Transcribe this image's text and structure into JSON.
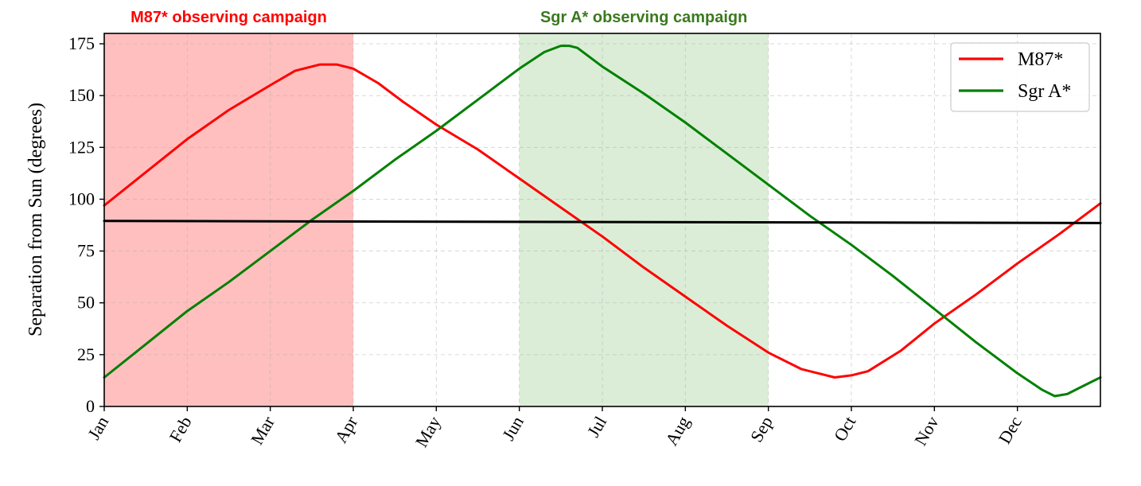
{
  "chart_data": {
    "type": "line",
    "title": "",
    "xlabel": "",
    "ylabel": "Separation from Sun (degrees)",
    "x_unit": "month",
    "xlim": [
      0,
      12
    ],
    "ylim": [
      0,
      180
    ],
    "yticks": [
      0,
      25,
      50,
      75,
      100,
      125,
      150,
      175
    ],
    "xticks": [
      {
        "label": "Jan",
        "x": 0
      },
      {
        "label": "Feb",
        "x": 1
      },
      {
        "label": "Mar",
        "x": 2
      },
      {
        "label": "Apr",
        "x": 3
      },
      {
        "label": "May",
        "x": 4
      },
      {
        "label": "Jun",
        "x": 5
      },
      {
        "label": "Jul",
        "x": 6
      },
      {
        "label": "Aug",
        "x": 7
      },
      {
        "label": "Sep",
        "x": 8
      },
      {
        "label": "Oct",
        "x": 9
      },
      {
        "label": "Nov",
        "x": 10
      },
      {
        "label": "Dec",
        "x": 11
      }
    ],
    "grid": true,
    "legend_position": "top-right",
    "series": [
      {
        "name": "M87*",
        "color": "#ff0000",
        "x": [
          0,
          0.5,
          1,
          1.5,
          2,
          2.3,
          2.6,
          2.8,
          3.0,
          3.3,
          3.6,
          4,
          4.5,
          5,
          5.5,
          6,
          6.5,
          7,
          7.5,
          8,
          8.4,
          8.8,
          9.0,
          9.2,
          9.6,
          10,
          10.5,
          11,
          11.5,
          12
        ],
        "y": [
          97,
          113,
          129,
          143,
          155,
          162,
          165,
          165,
          163,
          156,
          147,
          136,
          124,
          110,
          96,
          82,
          67,
          53,
          39,
          26,
          18,
          14,
          15,
          17,
          27,
          40,
          54,
          69,
          83,
          98
        ]
      },
      {
        "name": "Sgr A*",
        "color": "#008000",
        "x": [
          0,
          0.5,
          1,
          1.5,
          2,
          2.5,
          3,
          3.5,
          4,
          4.5,
          5,
          5.3,
          5.5,
          5.6,
          5.7,
          6,
          6.5,
          7,
          7.5,
          8,
          8.5,
          9,
          9.5,
          10,
          10.5,
          11,
          11.3,
          11.45,
          11.6,
          11.8,
          12
        ],
        "y": [
          14,
          30,
          46,
          60,
          75,
          90,
          104,
          119,
          133,
          148,
          163,
          171,
          174,
          174,
          173,
          164,
          151,
          137,
          122,
          107,
          92,
          78,
          63,
          47,
          31,
          16,
          8,
          5,
          6,
          10,
          14
        ]
      },
      {
        "color": "#000000",
        "x": [
          0,
          12
        ],
        "y": [
          89.5,
          88.5
        ]
      }
    ],
    "shaded_regions": [
      {
        "label": "M87* observing campaign",
        "x_start": 0,
        "x_end": 3,
        "color": "#ff0000",
        "alpha": 0.25,
        "label_color": "#ff0000"
      },
      {
        "label": "Sgr A* observing campaign",
        "x_start": 5,
        "x_end": 8,
        "color": "#7fbf6a",
        "alpha": 0.28,
        "label_color": "#3a7a1e"
      }
    ]
  }
}
